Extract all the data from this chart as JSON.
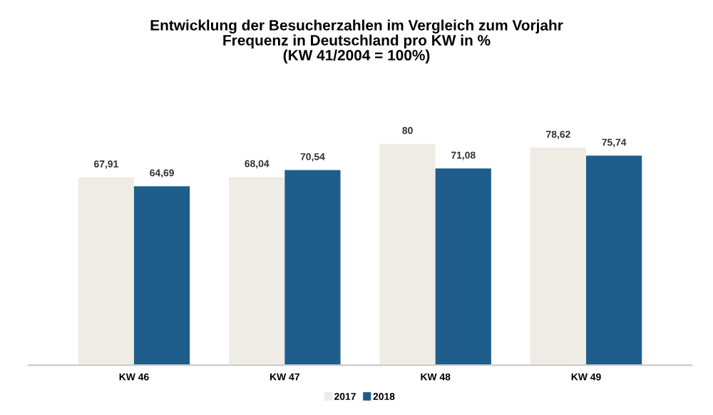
{
  "chart_data": {
    "type": "bar",
    "title": "Entwicklung der Besucherzahlen im Vergleich zum Vorjahr\nFrequenz in Deutschland pro KW in %\n(KW 41/2004 = 100%)",
    "categories": [
      "KW 46",
      "KW 47",
      "KW 48",
      "KW 49"
    ],
    "series": [
      {
        "name": "2017",
        "color": "#efece5",
        "values": [
          67.91,
          68.04,
          80,
          78.62
        ],
        "value_labels": [
          "67,91",
          "68,04",
          "80",
          "78,62"
        ]
      },
      {
        "name": "2018",
        "color": "#1f5e8c",
        "values": [
          64.69,
          70.54,
          71.08,
          75.74
        ],
        "value_labels": [
          "64,69",
          "70,54",
          "71,08",
          "75,74"
        ]
      }
    ],
    "legend": "bottom",
    "grid": false
  }
}
